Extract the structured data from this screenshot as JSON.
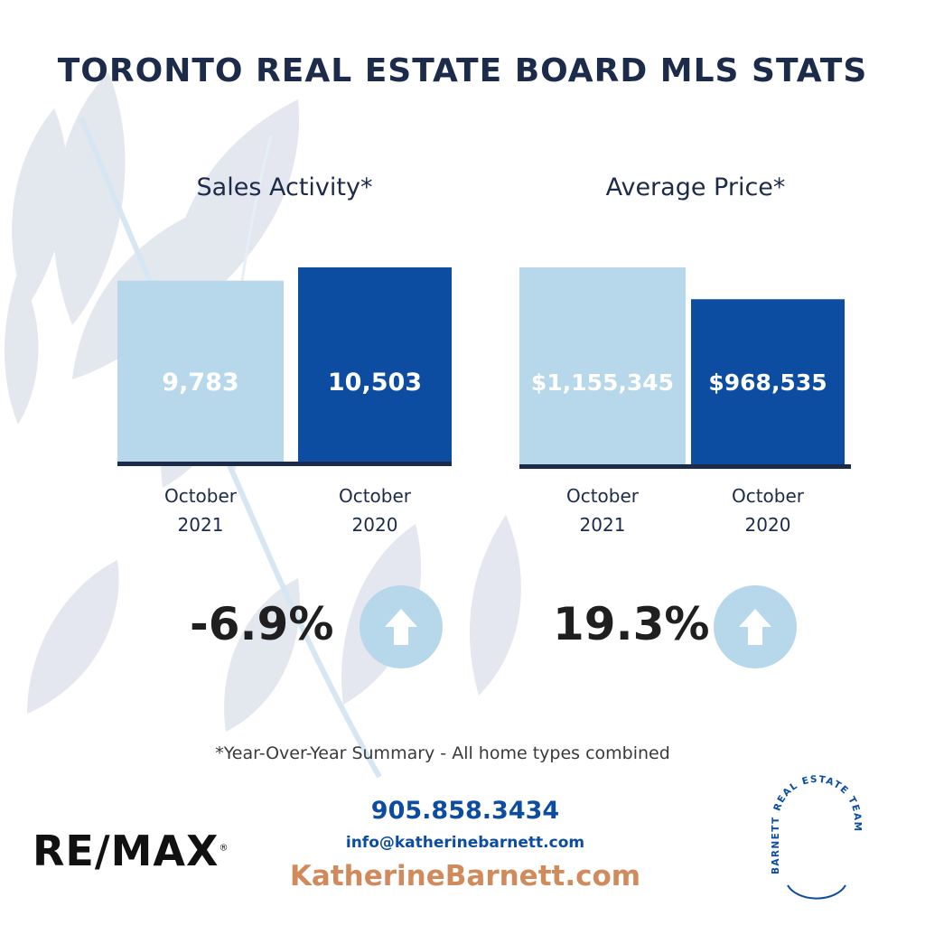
{
  "title": "TORONTO REAL ESTATE BOARD MLS STATS",
  "colors": {
    "navy": "#1c2b4a",
    "light_bar": "#b7d7ea",
    "dark_bar": "#0d4da1",
    "circle": "#b7d7ea",
    "website": "#d18a5b"
  },
  "chart_data": [
    {
      "type": "bar",
      "title": "Sales Activity*",
      "categories": [
        "October 2021",
        "October 2020"
      ],
      "category_lines": [
        [
          "October",
          "2021"
        ],
        [
          "October",
          "2020"
        ]
      ],
      "values": [
        9783,
        10503
      ],
      "data_labels": [
        "9,783",
        "10,503"
      ],
      "bar_colors": [
        "#b7d7ea",
        "#0d4da1"
      ],
      "change": "-6.9%",
      "change_icon": "arrow-up-icon"
    },
    {
      "type": "bar",
      "title": "Average Price*",
      "categories": [
        "October 2021",
        "October 2020"
      ],
      "category_lines": [
        [
          "October",
          "2021"
        ],
        [
          "October",
          "2020"
        ]
      ],
      "values": [
        1155345,
        968535
      ],
      "data_labels": [
        "$1,155,345",
        "$968,535"
      ],
      "bar_colors": [
        "#b7d7ea",
        "#0d4da1"
      ],
      "change": "19.3%",
      "change_icon": "arrow-up-icon"
    }
  ],
  "footnote": "*Year-Over-Year Summary - All home types combined",
  "contact": {
    "phone": "905.858.3434",
    "email": "info@katherinebarnett.com",
    "website": "KatherineBarnett.com"
  },
  "brand": {
    "remax": "RE/MAX",
    "remax_mark": "®",
    "team_logo_text": "BARNETT REAL ESTATE TEAM"
  }
}
